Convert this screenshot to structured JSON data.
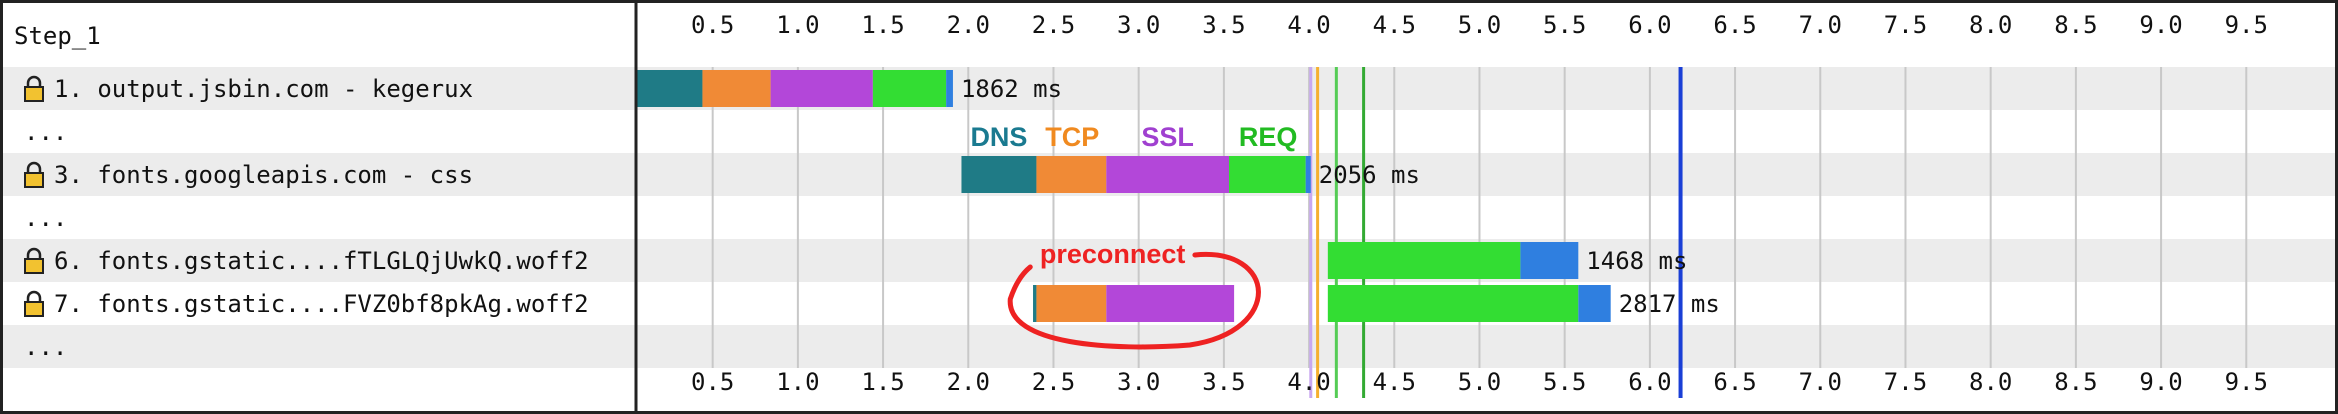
{
  "step": "Step_1",
  "chart_data": {
    "type": "waterfall",
    "x_ticks": [
      "0.5",
      "1.0",
      "1.5",
      "2.0",
      "2.5",
      "3.0",
      "3.5",
      "4.0",
      "4.5",
      "5.0",
      "5.5",
      "6.0",
      "6.5",
      "7.0",
      "7.5",
      "8.0",
      "8.5",
      "9.0",
      "9.5"
    ],
    "xlim": [
      0.05,
      10.05
    ],
    "x_unit": "seconds",
    "grid": true,
    "rows": [
      {
        "label": "1. output.jsbin.com - kegerux",
        "locked": true,
        "segments": [
          {
            "phase": "dns",
            "start": 0.05,
            "end": 0.44
          },
          {
            "phase": "tcp",
            "start": 0.44,
            "end": 0.84
          },
          {
            "phase": "ssl",
            "start": 0.84,
            "end": 1.44
          },
          {
            "phase": "req",
            "start": 1.44,
            "end": 1.87
          },
          {
            "phase": "content",
            "start": 1.87,
            "end": 1.91
          }
        ],
        "duration": "1862 ms"
      },
      {
        "label": "...",
        "locked": false,
        "segments": []
      },
      {
        "label": "3. fonts.googleapis.com - css",
        "locked": true,
        "segments": [
          {
            "phase": "dns",
            "start": 1.96,
            "end": 2.4
          },
          {
            "phase": "tcp",
            "start": 2.4,
            "end": 2.81
          },
          {
            "phase": "ssl",
            "start": 2.81,
            "end": 3.53
          },
          {
            "phase": "req",
            "start": 3.53,
            "end": 3.98
          },
          {
            "phase": "content",
            "start": 3.98,
            "end": 4.01
          }
        ],
        "duration": "2056 ms"
      },
      {
        "label": "...",
        "locked": false,
        "segments": []
      },
      {
        "label": "6. fonts.gstatic....fTLGLQjUwkQ.woff2",
        "locked": true,
        "segments": [
          {
            "phase": "req",
            "start": 4.11,
            "end": 5.24
          },
          {
            "phase": "content",
            "start": 5.24,
            "end": 5.58
          }
        ],
        "duration": "1468 ms"
      },
      {
        "label": "7. fonts.gstatic....FVZ0bf8pkAg.woff2",
        "locked": true,
        "segments": [
          {
            "phase": "dns",
            "start": 2.38,
            "end": 2.4
          },
          {
            "phase": "tcp",
            "start": 2.4,
            "end": 2.81
          },
          {
            "phase": "ssl",
            "start": 2.81,
            "end": 3.56
          },
          {
            "phase": "req",
            "start": 4.11,
            "end": 5.58
          },
          {
            "phase": "content",
            "start": 5.58,
            "end": 5.77
          }
        ],
        "duration": "2817 ms"
      },
      {
        "label": "...",
        "locked": false,
        "segments": []
      }
    ],
    "phase_labels": [
      {
        "text": "DNS",
        "phase": "dns",
        "x": 2.18
      },
      {
        "text": "TCP",
        "phase": "tcp",
        "x": 2.61
      },
      {
        "text": "SSL",
        "phase": "ssl",
        "x": 3.17
      },
      {
        "text": "REQ",
        "phase": "req",
        "x": 3.76
      }
    ],
    "annotation": "preconnect",
    "markers": [
      {
        "x": 4.01,
        "color": "#c8a8f0"
      },
      {
        "x": 4.05,
        "color": "#f5b030"
      },
      {
        "x": 4.16,
        "color": "#55cc55"
      },
      {
        "x": 4.32,
        "color": "#33aa33"
      },
      {
        "x": 6.18,
        "color": "#1a3fd6"
      }
    ]
  },
  "colors": {
    "dns": "#1f7b86",
    "tcp": "#f08a36",
    "ssl": "#b347d9",
    "req": "#33dd33",
    "content": "#2f7fe0",
    "phase_text": {
      "dns": "#1a7a90",
      "tcp": "#f08a20",
      "ssl": "#a040d0",
      "req": "#22bb22"
    },
    "annotation": "#ee2222"
  }
}
